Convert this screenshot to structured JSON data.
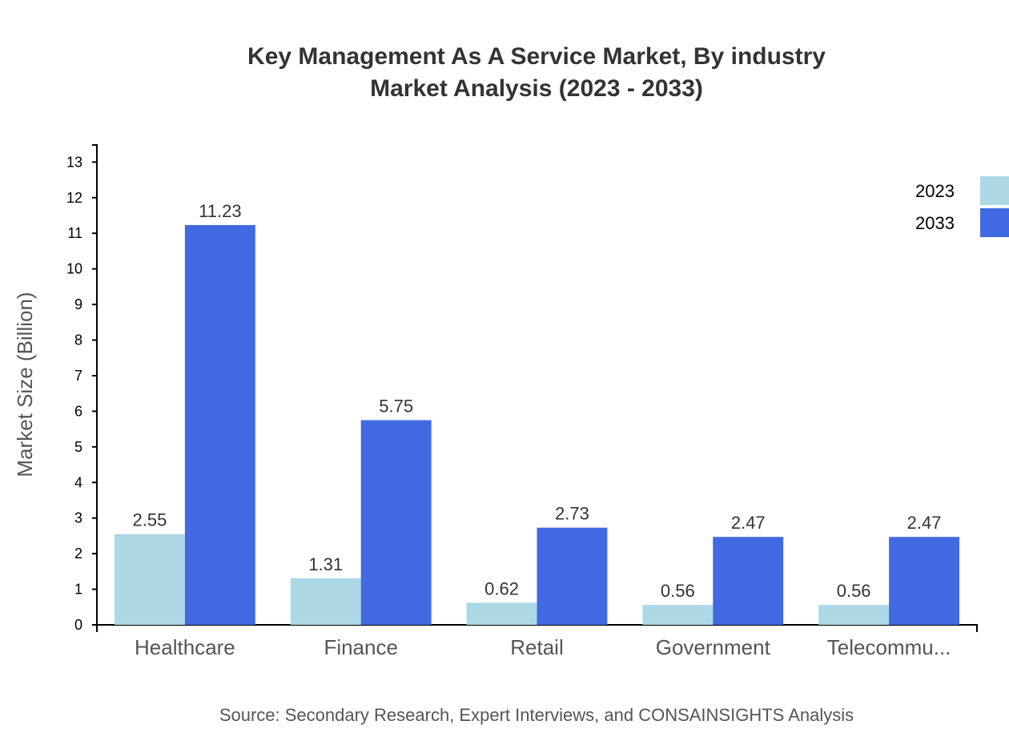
{
  "chart_data": {
    "type": "bar",
    "title": "Key Management As A Service Market, By industry",
    "subtitle": "Market Analysis (2023 - 2033)",
    "xlabel": "",
    "ylabel": "Market Size (Billion)",
    "categories": [
      "Healthcare",
      "Finance",
      "Retail",
      "Government",
      "Telecommu..."
    ],
    "series": [
      {
        "name": "2023",
        "color": "#ADD8E6",
        "values": [
          2.55,
          1.31,
          0.62,
          0.56,
          0.56
        ]
      },
      {
        "name": "2033",
        "color": "#4169E1",
        "values": [
          11.23,
          5.75,
          2.73,
          2.47,
          2.47
        ]
      }
    ],
    "ylim": [
      0,
      13.48
    ],
    "yticks": [
      0,
      1,
      2,
      3,
      4,
      5,
      6,
      7,
      8,
      9,
      10,
      11,
      12,
      13
    ],
    "grid": false,
    "legend": "top-right",
    "source": "Source: Secondary Research, Expert Interviews, and CONSAINSIGHTS Analysis"
  }
}
